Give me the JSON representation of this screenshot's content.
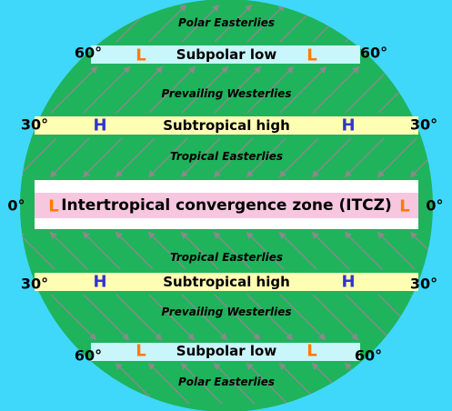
{
  "bands": [
    {
      "name": "Subpolar low",
      "latitude": "60°",
      "pressure": "L"
    },
    {
      "name": "Subtropical high",
      "latitude": "30°",
      "pressure": "H"
    },
    {
      "name": "Intertropical convergence zone (ITCZ)",
      "latitude": "0°",
      "pressure": "L"
    },
    {
      "name": "Subtropical high",
      "latitude": "30°",
      "pressure": "H"
    },
    {
      "name": "Subpolar low",
      "latitude": "60°",
      "pressure": "L"
    }
  ],
  "winds": [
    "Polar Easterlies",
    "Prevailing Westerlies",
    "Tropical Easterlies",
    "Tropical Easterlies",
    "Prevailing Westerlies",
    "Polar Easterlies"
  ]
}
